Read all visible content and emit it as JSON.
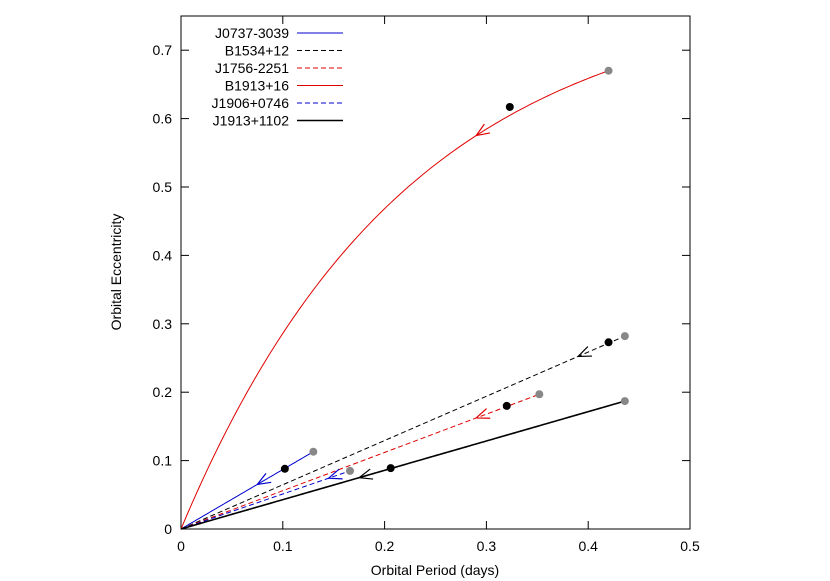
{
  "chart_data": {
    "type": "line",
    "title": "",
    "xlabel": "Orbital Period (days)",
    "ylabel": "Orbital Eccentricity",
    "xlim": [
      0,
      0.5
    ],
    "ylim": [
      0,
      0.75
    ],
    "xticks": [
      0,
      0.1,
      0.2,
      0.3,
      0.4,
      0.5
    ],
    "xtick_labels": [
      "0",
      "0.1",
      "0.2",
      "0.3",
      "0.4",
      "0.5"
    ],
    "yticks": [
      0,
      0.1,
      0.2,
      0.3,
      0.4,
      0.5,
      0.6,
      0.7
    ],
    "ytick_labels": [
      "0",
      "0.1",
      "0.2",
      "0.3",
      "0.4",
      "0.5",
      "0.6",
      "0.7"
    ],
    "grid": false,
    "legend_position": "top-left",
    "series": [
      {
        "name": "J0737-3039",
        "color": "#0000cc",
        "dash": "solid",
        "curve": "linear",
        "start": [
          0.13,
          0.113
        ],
        "current": [
          0.102,
          0.088
        ],
        "arrow_at": 0.075
      },
      {
        "name": "B1534+12",
        "color": "#000000",
        "dash": "dashed",
        "curve": "linear",
        "start": [
          0.436,
          0.282
        ],
        "current": [
          0.42,
          0.273
        ],
        "arrow_at": 0.39
      },
      {
        "name": "J1756-2251",
        "color": "#e00000",
        "dash": "dashed",
        "curve": "linear",
        "start": [
          0.352,
          0.197
        ],
        "current": [
          0.32,
          0.18
        ],
        "arrow_at": 0.29
      },
      {
        "name": "B1913+16",
        "color": "#e00000",
        "dash": "solid",
        "curve": "saturating",
        "start": [
          0.42,
          0.67
        ],
        "current": [
          0.323,
          0.617
        ],
        "arrow_at": 0.29
      },
      {
        "name": "J1906+0746",
        "color": "#0000cc",
        "dash": "dashed",
        "curve": "linear",
        "start": [
          0.166,
          0.085
        ],
        "current": null,
        "arrow_at": 0.145
      },
      {
        "name": "J1913+1102",
        "color": "#000000",
        "dash": "solid",
        "curve": "linear",
        "start": [
          0.436,
          0.187
        ],
        "current": [
          0.206,
          0.089
        ],
        "arrow_at": 0.175
      }
    ],
    "marker_colors": {
      "start": "#888888",
      "current": "#000000"
    }
  }
}
